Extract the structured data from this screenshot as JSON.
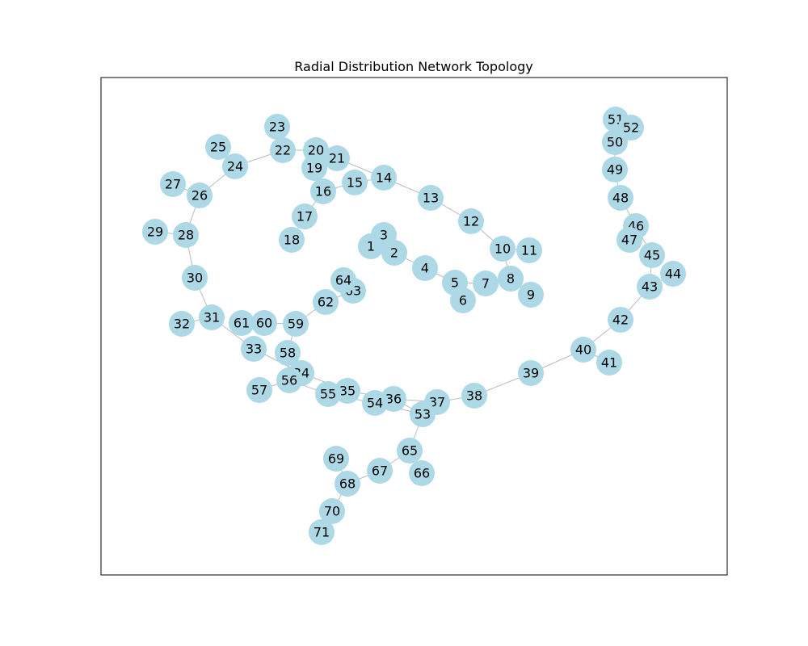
{
  "title": "Radial Distribution Network Topology",
  "colors": {
    "node_fill": "#ADD8E6",
    "edge": "#BBBBBB",
    "text": "#000000",
    "frame": "#000000",
    "background": "#FFFFFF"
  },
  "nodes": [
    "1",
    "2",
    "3",
    "4",
    "5",
    "6",
    "7",
    "8",
    "9",
    "10",
    "11",
    "12",
    "13",
    "14",
    "15",
    "16",
    "17",
    "18",
    "19",
    "20",
    "21",
    "22",
    "23",
    "24",
    "25",
    "26",
    "27",
    "28",
    "29",
    "30",
    "31",
    "32",
    "33",
    "34",
    "35",
    "36",
    "37",
    "38",
    "39",
    "40",
    "41",
    "42",
    "43",
    "44",
    "45",
    "46",
    "47",
    "48",
    "49",
    "50",
    "51",
    "52",
    "53",
    "54",
    "55",
    "56",
    "57",
    "58",
    "59",
    "60",
    "61",
    "62",
    "63",
    "64",
    "65",
    "66",
    "67",
    "68",
    "69",
    "70",
    "71"
  ],
  "edges": [
    [
      "1",
      "2"
    ],
    [
      "2",
      "3"
    ],
    [
      "2",
      "4"
    ],
    [
      "4",
      "5"
    ],
    [
      "5",
      "6"
    ],
    [
      "5",
      "7"
    ],
    [
      "7",
      "8"
    ],
    [
      "8",
      "9"
    ],
    [
      "8",
      "10"
    ],
    [
      "10",
      "11"
    ],
    [
      "10",
      "12"
    ],
    [
      "12",
      "13"
    ],
    [
      "13",
      "14"
    ],
    [
      "14",
      "15"
    ],
    [
      "14",
      "21"
    ],
    [
      "15",
      "16"
    ],
    [
      "16",
      "17"
    ],
    [
      "17",
      "18"
    ],
    [
      "16",
      "19"
    ],
    [
      "19",
      "20"
    ],
    [
      "20",
      "21"
    ],
    [
      "20",
      "22"
    ],
    [
      "22",
      "23"
    ],
    [
      "22",
      "24"
    ],
    [
      "24",
      "25"
    ],
    [
      "24",
      "26"
    ],
    [
      "26",
      "27"
    ],
    [
      "26",
      "28"
    ],
    [
      "28",
      "29"
    ],
    [
      "28",
      "30"
    ],
    [
      "30",
      "31"
    ],
    [
      "31",
      "32"
    ],
    [
      "31",
      "33"
    ],
    [
      "33",
      "34"
    ],
    [
      "34",
      "35"
    ],
    [
      "35",
      "36"
    ],
    [
      "36",
      "37"
    ],
    [
      "37",
      "38"
    ],
    [
      "38",
      "39"
    ],
    [
      "39",
      "40"
    ],
    [
      "40",
      "41"
    ],
    [
      "40",
      "42"
    ],
    [
      "42",
      "43"
    ],
    [
      "43",
      "44"
    ],
    [
      "43",
      "45"
    ],
    [
      "45",
      "46"
    ],
    [
      "46",
      "47"
    ],
    [
      "46",
      "48"
    ],
    [
      "48",
      "49"
    ],
    [
      "49",
      "50"
    ],
    [
      "50",
      "51"
    ],
    [
      "51",
      "52"
    ],
    [
      "36",
      "53"
    ],
    [
      "53",
      "54"
    ],
    [
      "54",
      "55"
    ],
    [
      "55",
      "56"
    ],
    [
      "56",
      "57"
    ],
    [
      "56",
      "58"
    ],
    [
      "58",
      "59"
    ],
    [
      "59",
      "60"
    ],
    [
      "60",
      "61"
    ],
    [
      "59",
      "62"
    ],
    [
      "62",
      "63"
    ],
    [
      "63",
      "64"
    ],
    [
      "53",
      "65"
    ],
    [
      "65",
      "66"
    ],
    [
      "65",
      "67"
    ],
    [
      "67",
      "68"
    ],
    [
      "68",
      "69"
    ],
    [
      "68",
      "70"
    ],
    [
      "70",
      "71"
    ]
  ]
}
